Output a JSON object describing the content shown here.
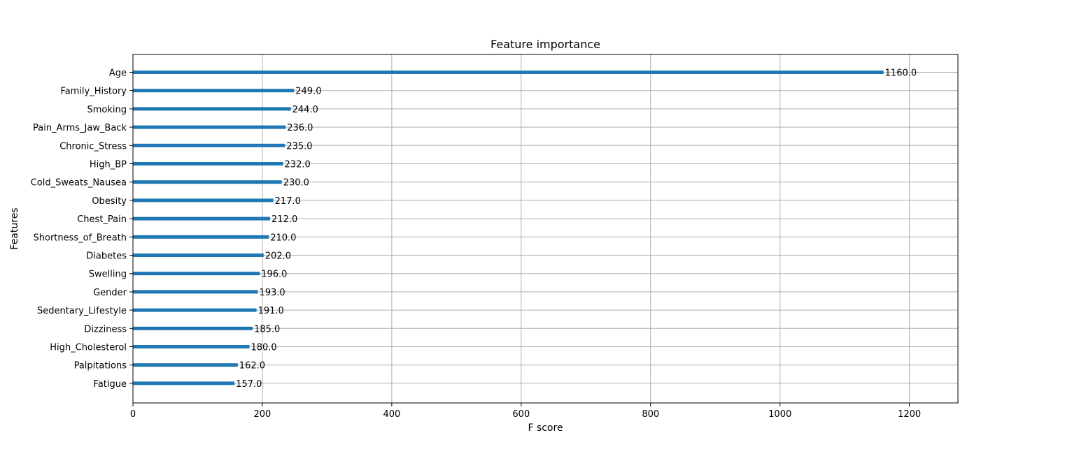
{
  "chart_data": {
    "type": "bar",
    "orientation": "horizontal",
    "title": "Feature importance",
    "xlabel": "F score",
    "ylabel": "Features",
    "xlim": [
      0,
      1275
    ],
    "xticks": [
      0,
      200,
      400,
      600,
      800,
      1000,
      1200
    ],
    "grid": true,
    "bar_color": "#1f77b4",
    "categories": [
      "Age",
      "Family_History",
      "Smoking",
      "Pain_Arms_Jaw_Back",
      "Chronic_Stress",
      "High_BP",
      "Cold_Sweats_Nausea",
      "Obesity",
      "Chest_Pain",
      "Shortness_of_Breath",
      "Diabetes",
      "Swelling",
      "Gender",
      "Sedentary_Lifestyle",
      "Dizziness",
      "High_Cholesterol",
      "Palpitations",
      "Fatigue"
    ],
    "values": [
      1160,
      249,
      244,
      236,
      235,
      232,
      230,
      217,
      212,
      210,
      202,
      196,
      193,
      191,
      185,
      180,
      162,
      157
    ],
    "data_labels": [
      "1160.0",
      "249.0",
      "244.0",
      "236.0",
      "235.0",
      "232.0",
      "230.0",
      "217.0",
      "212.0",
      "210.0",
      "202.0",
      "196.0",
      "193.0",
      "191.0",
      "185.0",
      "180.0",
      "162.0",
      "157.0"
    ]
  }
}
